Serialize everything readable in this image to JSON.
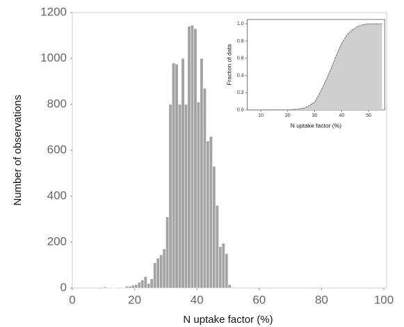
{
  "chart_data": [
    {
      "type": "histogram",
      "x_label": "N uptake factor (%)",
      "y_label": "Number of  observations",
      "bins": [
        10,
        11,
        12,
        13,
        14,
        15,
        16,
        17,
        18,
        19,
        20,
        21,
        22,
        23,
        24,
        25,
        26,
        27,
        28,
        29,
        30,
        31,
        32,
        33,
        34,
        35,
        36,
        37,
        38,
        39,
        40,
        41,
        42,
        43,
        44,
        45,
        46,
        47,
        48,
        49,
        50,
        51,
        52
      ],
      "values": [
        5,
        0,
        0,
        2,
        3,
        0,
        2,
        8,
        8,
        12,
        15,
        25,
        35,
        50,
        20,
        40,
        110,
        130,
        145,
        170,
        310,
        800,
        980,
        975,
        800,
        1000,
        800,
        1140,
        1145,
        1130,
        810,
        1000,
        870,
        640,
        660,
        530,
        360,
        180,
        195,
        150,
        15,
        3
      ],
      "color": "#a3a3a3",
      "xlim": [
        0,
        100
      ],
      "xticks": [
        0,
        20,
        40,
        60,
        80,
        100
      ],
      "ylim": [
        0,
        1200
      ],
      "yticks": [
        0,
        200,
        400,
        600,
        800,
        1000,
        1200
      ]
    },
    {
      "type": "area",
      "x_label": "N uptake factor (%)",
      "y_label": "Fraction of data",
      "x": [
        5,
        20,
        22,
        24,
        26,
        28,
        30,
        32,
        34,
        36,
        38,
        40,
        42,
        44,
        46,
        48,
        50,
        52,
        55
      ],
      "values": [
        0,
        0,
        0.005,
        0.01,
        0.02,
        0.05,
        0.09,
        0.2,
        0.33,
        0.47,
        0.63,
        0.77,
        0.87,
        0.93,
        0.97,
        0.99,
        1.0,
        1.0,
        1.0
      ],
      "color": "#cfcfcf",
      "xlim": [
        5,
        56
      ],
      "xticks": [
        10,
        20,
        30,
        40,
        50
      ],
      "ylim": [
        0,
        1.05
      ],
      "yticks": [
        {
          "value": 0,
          "label": "0.0"
        },
        0.2,
        0.4,
        0.6,
        0.8,
        {
          "value": 1,
          "label": "1.0"
        }
      ]
    }
  ]
}
